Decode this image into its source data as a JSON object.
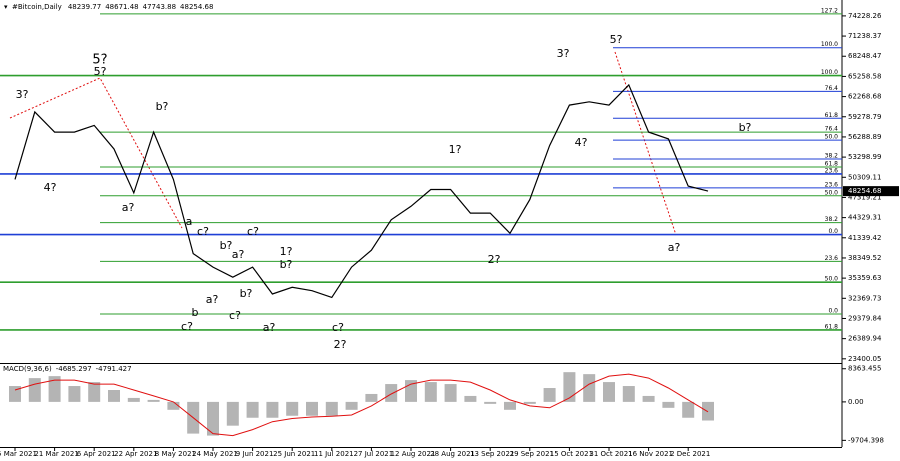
{
  "chart_data": [
    {
      "type": "line",
      "title": "#Bitcoin,Daily",
      "ohlc": [
        48239.77,
        48671.48,
        47743.88,
        48254.68
      ],
      "categories": [
        "5 Mar 2021",
        null,
        "21 Mar 2021",
        null,
        "6 Apr 2021",
        null,
        "22 Apr 2021",
        null,
        "8 May 2021",
        null,
        "24 May 2021",
        null,
        "9 Jun 2021",
        null,
        "25 Jun 2021",
        null,
        "11 Jul 2021",
        null,
        "27 Jul 2021",
        null,
        "12 Aug 2021",
        null,
        "28 Aug 2021",
        null,
        "13 Sep 2021",
        null,
        "29 Sep 2021",
        null,
        "15 Oct 2021",
        null,
        "31 Oct 2021",
        null,
        "16 Nov 2021",
        null,
        "2 Dec 2021",
        null
      ],
      "color": "#000000",
      "values": [
        50000,
        60000,
        57000,
        57000,
        58000,
        54500,
        48000,
        57000,
        50000,
        39000,
        37000,
        35500,
        37000,
        33000,
        34000,
        33500,
        32500,
        37000,
        39500,
        44000,
        46000,
        48500,
        48500,
        45000,
        45000,
        42000,
        47000,
        55000,
        61000,
        61500,
        61000,
        64000,
        57000,
        56000,
        49000,
        48254.68
      ],
      "ylim": [
        22780,
        76585
      ],
      "yticks": [
        74228.26,
        71238.37,
        68248.47,
        65258.58,
        62268.68,
        59278.79,
        56288.89,
        53298.99,
        50309.11,
        47319.21,
        44329.31,
        41339.42,
        38349.52,
        35359.63,
        32369.73,
        29379.84,
        26389.94,
        23400.05
      ],
      "levels": [
        {
          "price": 74523,
          "label": "127.2",
          "color": "#2e9e2e"
        },
        {
          "price": 69515,
          "label": "100.0",
          "color": "#1f3fd6"
        },
        {
          "price": 65390,
          "label": "100.0",
          "color": "#2e9e2e"
        },
        {
          "price": 63033,
          "label": "76.4",
          "color": "#1f3fd6"
        },
        {
          "price": 59057,
          "label": "61.8",
          "color": "#1f3fd6"
        },
        {
          "price": 56994,
          "label": "76.4",
          "color": "#2e9e2e"
        },
        {
          "price": 55816,
          "label": "50.0",
          "color": "#1f3fd6"
        },
        {
          "price": 53017,
          "label": "38.2",
          "color": "#1f3fd6"
        },
        {
          "price": 51838,
          "label": "61.8",
          "color": "#2e9e2e"
        },
        {
          "price": 50807,
          "label": "23.6",
          "color": "#1f3fd6"
        },
        {
          "price": 48745,
          "label": "23.6",
          "color": "#1f3fd6"
        },
        {
          "price": 47566,
          "label": "50.0",
          "color": "#2e9e2e"
        },
        {
          "price": 43589,
          "label": "38.2",
          "color": "#2e9e2e"
        },
        {
          "price": 41820,
          "label": "0.0",
          "color": "#1f3fd6"
        },
        {
          "price": 37846,
          "label": "23.6",
          "color": "#2e9e2e"
        },
        {
          "price": 34754,
          "label": "50.0",
          "color": "#2e9e2e"
        },
        {
          "price": 30040,
          "label": "0.0",
          "color": "#2e9e2e"
        },
        {
          "price": 27683,
          "label": "61.8",
          "color": "#2e9e2e"
        }
      ],
      "annotation_color": "#1f8a1f",
      "annotations": [
        {
          "text": "5?",
          "color": "#0a0aa0"
        },
        {
          "text": "5?"
        },
        {
          "text": "3?"
        },
        {
          "text": "4?"
        },
        {
          "text": "a?"
        },
        {
          "text": "b?"
        },
        {
          "text": "c?"
        },
        {
          "text": "a"
        },
        {
          "text": "b?"
        },
        {
          "text": "a?"
        },
        {
          "text": "c?"
        },
        {
          "text": "1?"
        },
        {
          "text": "b?"
        },
        {
          "text": "b?"
        },
        {
          "text": "a?"
        },
        {
          "text": "c?"
        },
        {
          "text": "b"
        },
        {
          "text": "c?"
        },
        {
          "text": "a?"
        },
        {
          "text": "c?"
        },
        {
          "text": "2?"
        },
        {
          "text": "1?"
        },
        {
          "text": "2?"
        },
        {
          "text": "3?"
        },
        {
          "text": "4?"
        },
        {
          "text": "5?"
        },
        {
          "text": "a?"
        },
        {
          "text": "b?"
        }
      ]
    },
    {
      "type": "macd",
      "title": "MACD(9,36,6)",
      "indicator_values": [
        -4685.297,
        -4791.427
      ],
      "series": [
        {
          "kind": "bar",
          "color": "#b4b4b4",
          "values": [
            4000,
            6000,
            6500,
            4000,
            5000,
            3000,
            1000,
            500,
            -2000,
            -8000,
            -8500,
            -6000,
            -4000,
            -4000,
            -3500,
            -3500,
            -3500,
            -2000,
            2000,
            4500,
            5500,
            5000,
            4500,
            1500,
            -500,
            -2000,
            -500,
            3500,
            7500,
            7000,
            5000,
            4000,
            1500,
            -1500,
            -4000,
            -4700
          ]
        },
        {
          "kind": "line",
          "color": "#e01010",
          "values": [
            3000,
            4500,
            5500,
            5500,
            4500,
            4500,
            3000,
            1500,
            0,
            -4000,
            -8000,
            -8500,
            -7000,
            -5000,
            -4200,
            -3800,
            -3600,
            -3300,
            -1000,
            2000,
            4500,
            5500,
            5500,
            5000,
            3000,
            500,
            -1000,
            -1500,
            1000,
            4500,
            6500,
            7000,
            6000,
            3500,
            500,
            -2500
          ]
        }
      ],
      "ylim": [
        -11380,
        9560
      ],
      "yticks": [
        8363.455,
        {
          "value": 0,
          "label": "0.00"
        },
        -9704.398
      ]
    }
  ]
}
